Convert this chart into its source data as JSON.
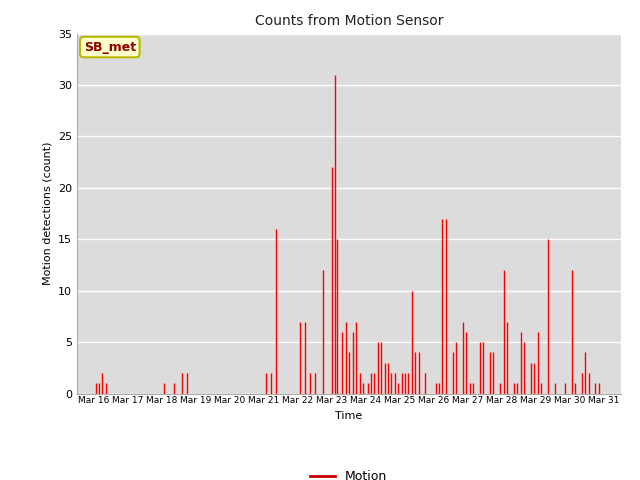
{
  "title": "Counts from Motion Sensor",
  "xlabel": "Time",
  "ylabel": "Motion detections (count)",
  "legend_label": "Motion",
  "legend_label_box": "SB_met",
  "ylim": [
    0,
    35
  ],
  "yticks": [
    0,
    5,
    10,
    15,
    20,
    25,
    30,
    35
  ],
  "plot_bg": "#dcdcdc",
  "fig_bg": "#ffffff",
  "bar_color": "#ff0000",
  "line_color": "#cc0000",
  "x_tick_labels": [
    "Mar 16",
    "Mar 17",
    "Mar 18",
    "Mar 19",
    "Mar 20",
    "Mar 21",
    "Mar 22",
    "Mar 23",
    "Mar 24",
    "Mar 25",
    "Mar 26",
    "Mar 27",
    "Mar 28",
    "Mar 29",
    "Mar 30",
    "Mar 31"
  ],
  "dates": [
    16,
    17,
    18,
    19,
    20,
    21,
    22,
    23,
    24,
    25,
    26,
    27,
    28,
    29,
    30,
    31
  ],
  "xlim": [
    15.5,
    31.5
  ],
  "data": [
    [
      16.05,
      1
    ],
    [
      16.15,
      1
    ],
    [
      16.25,
      2
    ],
    [
      16.35,
      1
    ],
    [
      18.05,
      1
    ],
    [
      18.35,
      1
    ],
    [
      18.6,
      2
    ],
    [
      18.75,
      2
    ],
    [
      21.05,
      2
    ],
    [
      21.2,
      2
    ],
    [
      21.35,
      16
    ],
    [
      22.05,
      7
    ],
    [
      22.2,
      7
    ],
    [
      22.35,
      2
    ],
    [
      22.5,
      2
    ],
    [
      22.75,
      12
    ],
    [
      23.0,
      22
    ],
    [
      23.08,
      31
    ],
    [
      23.16,
      15
    ],
    [
      23.3,
      6
    ],
    [
      23.42,
      7
    ],
    [
      23.52,
      4
    ],
    [
      23.62,
      6
    ],
    [
      23.72,
      7
    ],
    [
      23.82,
      2
    ],
    [
      23.92,
      1
    ],
    [
      24.05,
      1
    ],
    [
      24.15,
      2
    ],
    [
      24.25,
      2
    ],
    [
      24.35,
      5
    ],
    [
      24.45,
      5
    ],
    [
      24.55,
      3
    ],
    [
      24.65,
      3
    ],
    [
      24.75,
      2
    ],
    [
      24.85,
      2
    ],
    [
      24.95,
      1
    ],
    [
      25.05,
      2
    ],
    [
      25.15,
      2
    ],
    [
      25.25,
      2
    ],
    [
      25.35,
      10
    ],
    [
      25.45,
      4
    ],
    [
      25.55,
      4
    ],
    [
      25.75,
      2
    ],
    [
      26.05,
      1
    ],
    [
      26.15,
      1
    ],
    [
      26.25,
      17
    ],
    [
      26.35,
      17
    ],
    [
      26.55,
      4
    ],
    [
      26.65,
      5
    ],
    [
      26.85,
      7
    ],
    [
      26.95,
      6
    ],
    [
      27.05,
      1
    ],
    [
      27.15,
      1
    ],
    [
      27.35,
      5
    ],
    [
      27.45,
      5
    ],
    [
      27.65,
      4
    ],
    [
      27.75,
      4
    ],
    [
      27.95,
      1
    ],
    [
      28.05,
      12
    ],
    [
      28.15,
      7
    ],
    [
      28.35,
      1
    ],
    [
      28.45,
      1
    ],
    [
      28.55,
      6
    ],
    [
      28.65,
      5
    ],
    [
      28.85,
      3
    ],
    [
      28.95,
      3
    ],
    [
      29.05,
      6
    ],
    [
      29.15,
      1
    ],
    [
      29.35,
      15
    ],
    [
      29.55,
      1
    ],
    [
      29.85,
      1
    ],
    [
      30.05,
      12
    ],
    [
      30.15,
      1
    ],
    [
      30.35,
      2
    ],
    [
      30.45,
      4
    ],
    [
      30.55,
      2
    ],
    [
      30.75,
      1
    ],
    [
      30.85,
      1
    ]
  ]
}
